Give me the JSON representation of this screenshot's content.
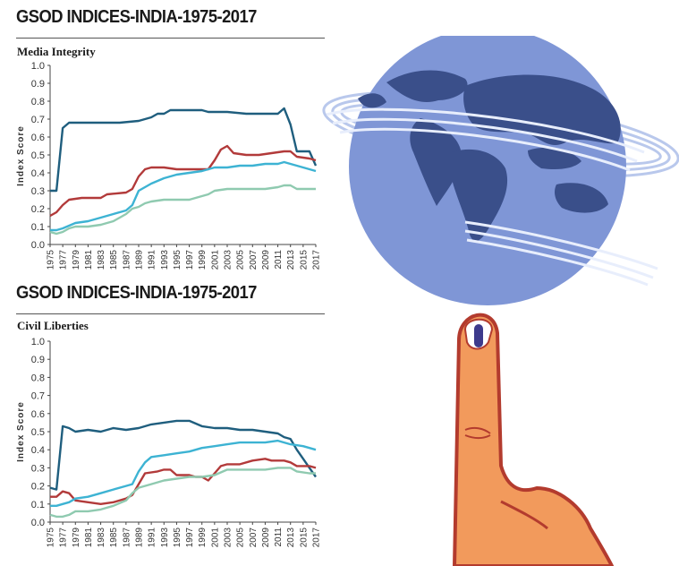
{
  "page": {
    "chart1_title": "GSOD INDICES-INDIA-1975-2017",
    "chart2_title": "GSOD INDICES-INDIA-1975-2017"
  },
  "colors": {
    "series_dark_blue": "#1f5e7e",
    "series_red": "#b23a3a",
    "series_cyan": "#3db3d3",
    "series_green": "#8fcab0",
    "globe": "#7f96d6",
    "continents": "#3a4f8a",
    "finger": "#f29a5c",
    "ink": "#3d3a8c"
  },
  "chart_data": [
    {
      "type": "line",
      "title": "Media Integrity",
      "ylabel": "Index Score",
      "xlabel": "",
      "ylim": [
        0,
        1
      ],
      "yticks": [
        "0.0",
        "0.1",
        "0.2",
        "0.3",
        "0.4",
        "0.5",
        "0.6",
        "0.7",
        "0.8",
        "0.9",
        "1.0"
      ],
      "xticks": [
        "1975",
        "1977",
        "1979",
        "1981",
        "1983",
        "1985",
        "1987",
        "1989",
        "1991",
        "1993",
        "1995",
        "1997",
        "1999",
        "2001",
        "2003",
        "2005",
        "2007",
        "2009",
        "2011",
        "2013",
        "2015",
        "2017"
      ],
      "xrange": [
        1975,
        2017
      ],
      "grid": false,
      "series": [
        {
          "color_key": "series_dark_blue",
          "points": [
            [
              1975,
              0.3
            ],
            [
              1976,
              0.3
            ],
            [
              1977,
              0.65
            ],
            [
              1978,
              0.68
            ],
            [
              1980,
              0.68
            ],
            [
              1983,
              0.68
            ],
            [
              1986,
              0.68
            ],
            [
              1989,
              0.69
            ],
            [
              1991,
              0.71
            ],
            [
              1992,
              0.73
            ],
            [
              1993,
              0.73
            ],
            [
              1994,
              0.75
            ],
            [
              1997,
              0.75
            ],
            [
              1999,
              0.75
            ],
            [
              2000,
              0.74
            ],
            [
              2003,
              0.74
            ],
            [
              2006,
              0.73
            ],
            [
              2009,
              0.73
            ],
            [
              2011,
              0.73
            ],
            [
              2012,
              0.76
            ],
            [
              2013,
              0.67
            ],
            [
              2014,
              0.52
            ],
            [
              2015,
              0.52
            ],
            [
              2016,
              0.52
            ],
            [
              2017,
              0.44
            ]
          ]
        },
        {
          "color_key": "series_red",
          "points": [
            [
              1975,
              0.16
            ],
            [
              1976,
              0.18
            ],
            [
              1977,
              0.22
            ],
            [
              1978,
              0.25
            ],
            [
              1980,
              0.26
            ],
            [
              1983,
              0.26
            ],
            [
              1984,
              0.28
            ],
            [
              1987,
              0.29
            ],
            [
              1988,
              0.31
            ],
            [
              1989,
              0.38
            ],
            [
              1990,
              0.42
            ],
            [
              1991,
              0.43
            ],
            [
              1993,
              0.43
            ],
            [
              1995,
              0.42
            ],
            [
              1996,
              0.42
            ],
            [
              1998,
              0.42
            ],
            [
              2000,
              0.42
            ],
            [
              2001,
              0.47
            ],
            [
              2002,
              0.53
            ],
            [
              2003,
              0.55
            ],
            [
              2004,
              0.51
            ],
            [
              2006,
              0.5
            ],
            [
              2008,
              0.5
            ],
            [
              2010,
              0.51
            ],
            [
              2012,
              0.52
            ],
            [
              2013,
              0.52
            ],
            [
              2014,
              0.49
            ],
            [
              2016,
              0.48
            ],
            [
              2017,
              0.47
            ]
          ]
        },
        {
          "color_key": "series_cyan",
          "points": [
            [
              1975,
              0.08
            ],
            [
              1976,
              0.08
            ],
            [
              1977,
              0.09
            ],
            [
              1979,
              0.12
            ],
            [
              1981,
              0.13
            ],
            [
              1983,
              0.15
            ],
            [
              1985,
              0.17
            ],
            [
              1987,
              0.19
            ],
            [
              1988,
              0.22
            ],
            [
              1989,
              0.3
            ],
            [
              1991,
              0.34
            ],
            [
              1993,
              0.37
            ],
            [
              1995,
              0.39
            ],
            [
              1997,
              0.4
            ],
            [
              1999,
              0.41
            ],
            [
              2001,
              0.43
            ],
            [
              2003,
              0.43
            ],
            [
              2005,
              0.44
            ],
            [
              2007,
              0.44
            ],
            [
              2009,
              0.45
            ],
            [
              2011,
              0.45
            ],
            [
              2012,
              0.46
            ],
            [
              2013,
              0.45
            ],
            [
              2015,
              0.43
            ],
            [
              2017,
              0.41
            ]
          ]
        },
        {
          "color_key": "series_green",
          "points": [
            [
              1975,
              0.07
            ],
            [
              1976,
              0.06
            ],
            [
              1977,
              0.07
            ],
            [
              1978,
              0.09
            ],
            [
              1979,
              0.1
            ],
            [
              1981,
              0.1
            ],
            [
              1983,
              0.11
            ],
            [
              1985,
              0.13
            ],
            [
              1987,
              0.17
            ],
            [
              1988,
              0.2
            ],
            [
              1989,
              0.21
            ],
            [
              1990,
              0.23
            ],
            [
              1991,
              0.24
            ],
            [
              1993,
              0.25
            ],
            [
              1995,
              0.25
            ],
            [
              1997,
              0.25
            ],
            [
              1999,
              0.27
            ],
            [
              2000,
              0.28
            ],
            [
              2001,
              0.3
            ],
            [
              2003,
              0.31
            ],
            [
              2005,
              0.31
            ],
            [
              2007,
              0.31
            ],
            [
              2009,
              0.31
            ],
            [
              2011,
              0.32
            ],
            [
              2012,
              0.33
            ],
            [
              2013,
              0.33
            ],
            [
              2014,
              0.31
            ],
            [
              2017,
              0.31
            ]
          ]
        }
      ]
    },
    {
      "type": "line",
      "title": "Civil Liberties",
      "ylabel": "Index Score",
      "xlabel": "",
      "ylim": [
        0,
        1
      ],
      "yticks": [
        "0.0",
        "0.1",
        "0.2",
        "0.3",
        "0.4",
        "0.5",
        "0.6",
        "0.7",
        "0.8",
        "0.9",
        "1.0"
      ],
      "xticks": [
        "1975",
        "1977",
        "1979",
        "1981",
        "1983",
        "1985",
        "1987",
        "1989",
        "1991",
        "1993",
        "1995",
        "1997",
        "1999",
        "2001",
        "2003",
        "2005",
        "2007",
        "2009",
        "2011",
        "2013",
        "2015",
        "2017"
      ],
      "xrange": [
        1975,
        2017
      ],
      "grid": false,
      "series": [
        {
          "color_key": "series_dark_blue",
          "points": [
            [
              1975,
              0.19
            ],
            [
              1976,
              0.18
            ],
            [
              1977,
              0.53
            ],
            [
              1978,
              0.52
            ],
            [
              1979,
              0.5
            ],
            [
              1981,
              0.51
            ],
            [
              1983,
              0.5
            ],
            [
              1985,
              0.52
            ],
            [
              1987,
              0.51
            ],
            [
              1989,
              0.52
            ],
            [
              1991,
              0.54
            ],
            [
              1993,
              0.55
            ],
            [
              1995,
              0.56
            ],
            [
              1997,
              0.56
            ],
            [
              1999,
              0.53
            ],
            [
              2001,
              0.52
            ],
            [
              2003,
              0.52
            ],
            [
              2005,
              0.51
            ],
            [
              2007,
              0.51
            ],
            [
              2009,
              0.5
            ],
            [
              2011,
              0.49
            ],
            [
              2012,
              0.47
            ],
            [
              2013,
              0.46
            ],
            [
              2014,
              0.4
            ],
            [
              2015,
              0.35
            ],
            [
              2016,
              0.3
            ],
            [
              2017,
              0.25
            ]
          ]
        },
        {
          "color_key": "series_red",
          "points": [
            [
              1975,
              0.14
            ],
            [
              1976,
              0.14
            ],
            [
              1977,
              0.17
            ],
            [
              1978,
              0.16
            ],
            [
              1979,
              0.12
            ],
            [
              1981,
              0.11
            ],
            [
              1983,
              0.1
            ],
            [
              1985,
              0.11
            ],
            [
              1987,
              0.13
            ],
            [
              1988,
              0.15
            ],
            [
              1989,
              0.21
            ],
            [
              1990,
              0.27
            ],
            [
              1992,
              0.28
            ],
            [
              1993,
              0.29
            ],
            [
              1994,
              0.29
            ],
            [
              1995,
              0.26
            ],
            [
              1997,
              0.26
            ],
            [
              1998,
              0.25
            ],
            [
              1999,
              0.25
            ],
            [
              2000,
              0.23
            ],
            [
              2001,
              0.27
            ],
            [
              2002,
              0.31
            ],
            [
              2003,
              0.32
            ],
            [
              2005,
              0.32
            ],
            [
              2007,
              0.34
            ],
            [
              2009,
              0.35
            ],
            [
              2010,
              0.34
            ],
            [
              2012,
              0.34
            ],
            [
              2013,
              0.33
            ],
            [
              2014,
              0.31
            ],
            [
              2016,
              0.31
            ],
            [
              2017,
              0.3
            ]
          ]
        },
        {
          "color_key": "series_cyan",
          "points": [
            [
              1975,
              0.09
            ],
            [
              1976,
              0.09
            ],
            [
              1977,
              0.1
            ],
            [
              1978,
              0.11
            ],
            [
              1979,
              0.13
            ],
            [
              1981,
              0.14
            ],
            [
              1983,
              0.16
            ],
            [
              1985,
              0.18
            ],
            [
              1987,
              0.2
            ],
            [
              1988,
              0.21
            ],
            [
              1989,
              0.28
            ],
            [
              1990,
              0.33
            ],
            [
              1991,
              0.36
            ],
            [
              1993,
              0.37
            ],
            [
              1995,
              0.38
            ],
            [
              1997,
              0.39
            ],
            [
              1999,
              0.41
            ],
            [
              2001,
              0.42
            ],
            [
              2003,
              0.43
            ],
            [
              2005,
              0.44
            ],
            [
              2007,
              0.44
            ],
            [
              2009,
              0.44
            ],
            [
              2011,
              0.45
            ],
            [
              2012,
              0.44
            ],
            [
              2013,
              0.43
            ],
            [
              2015,
              0.42
            ],
            [
              2017,
              0.4
            ]
          ]
        },
        {
          "color_key": "series_green",
          "points": [
            [
              1975,
              0.04
            ],
            [
              1976,
              0.03
            ],
            [
              1977,
              0.03
            ],
            [
              1978,
              0.04
            ],
            [
              1979,
              0.06
            ],
            [
              1981,
              0.06
            ],
            [
              1983,
              0.07
            ],
            [
              1985,
              0.09
            ],
            [
              1987,
              0.12
            ],
            [
              1988,
              0.16
            ],
            [
              1989,
              0.19
            ],
            [
              1991,
              0.21
            ],
            [
              1993,
              0.23
            ],
            [
              1995,
              0.24
            ],
            [
              1997,
              0.25
            ],
            [
              1999,
              0.25
            ],
            [
              2001,
              0.26
            ],
            [
              2003,
              0.29
            ],
            [
              2005,
              0.29
            ],
            [
              2007,
              0.29
            ],
            [
              2009,
              0.29
            ],
            [
              2011,
              0.3
            ],
            [
              2012,
              0.3
            ],
            [
              2013,
              0.3
            ],
            [
              2014,
              0.28
            ],
            [
              2016,
              0.27
            ],
            [
              2017,
              0.27
            ]
          ]
        }
      ]
    }
  ]
}
